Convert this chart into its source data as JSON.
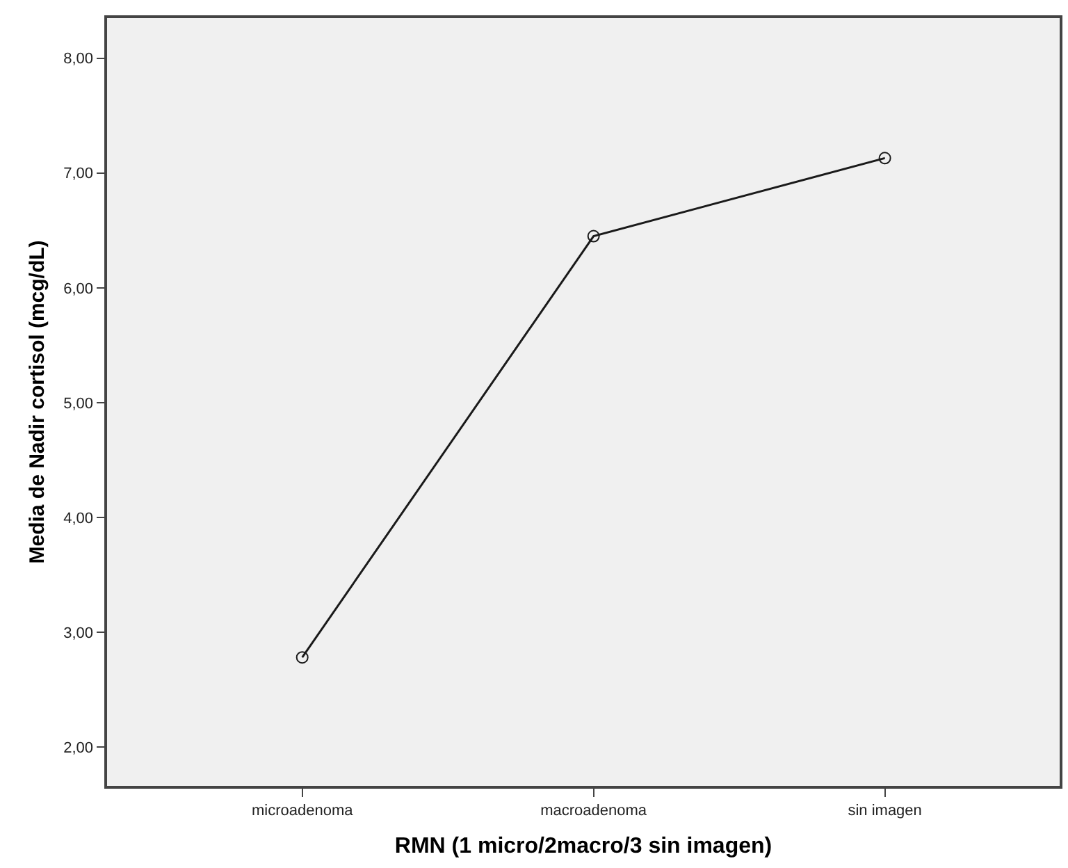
{
  "chart_data": {
    "type": "line",
    "xlabel": "RMN (1 micro/2macro/3 sin imagen)",
    "ylabel": "Media de Nadir cortisol (mcg/dL)",
    "categories": [
      "microadenoma",
      "macroadenoma",
      "sin imagen"
    ],
    "series": [
      {
        "color": "#1a1a1a",
        "values": [
          2.78,
          6.45,
          7.13
        ]
      }
    ],
    "ylim": [
      1.66,
      8.35
    ],
    "yticks": [
      {
        "value": 2,
        "label": "2,00"
      },
      {
        "value": 3,
        "label": "3,00"
      },
      {
        "value": 4,
        "label": "4,00"
      },
      {
        "value": 5,
        "label": "5,00"
      },
      {
        "value": 6,
        "label": "6,00"
      },
      {
        "value": 7,
        "label": "7,00"
      },
      {
        "value": 8,
        "label": "8,00"
      }
    ],
    "marker": "circle",
    "line_style": "solid"
  }
}
